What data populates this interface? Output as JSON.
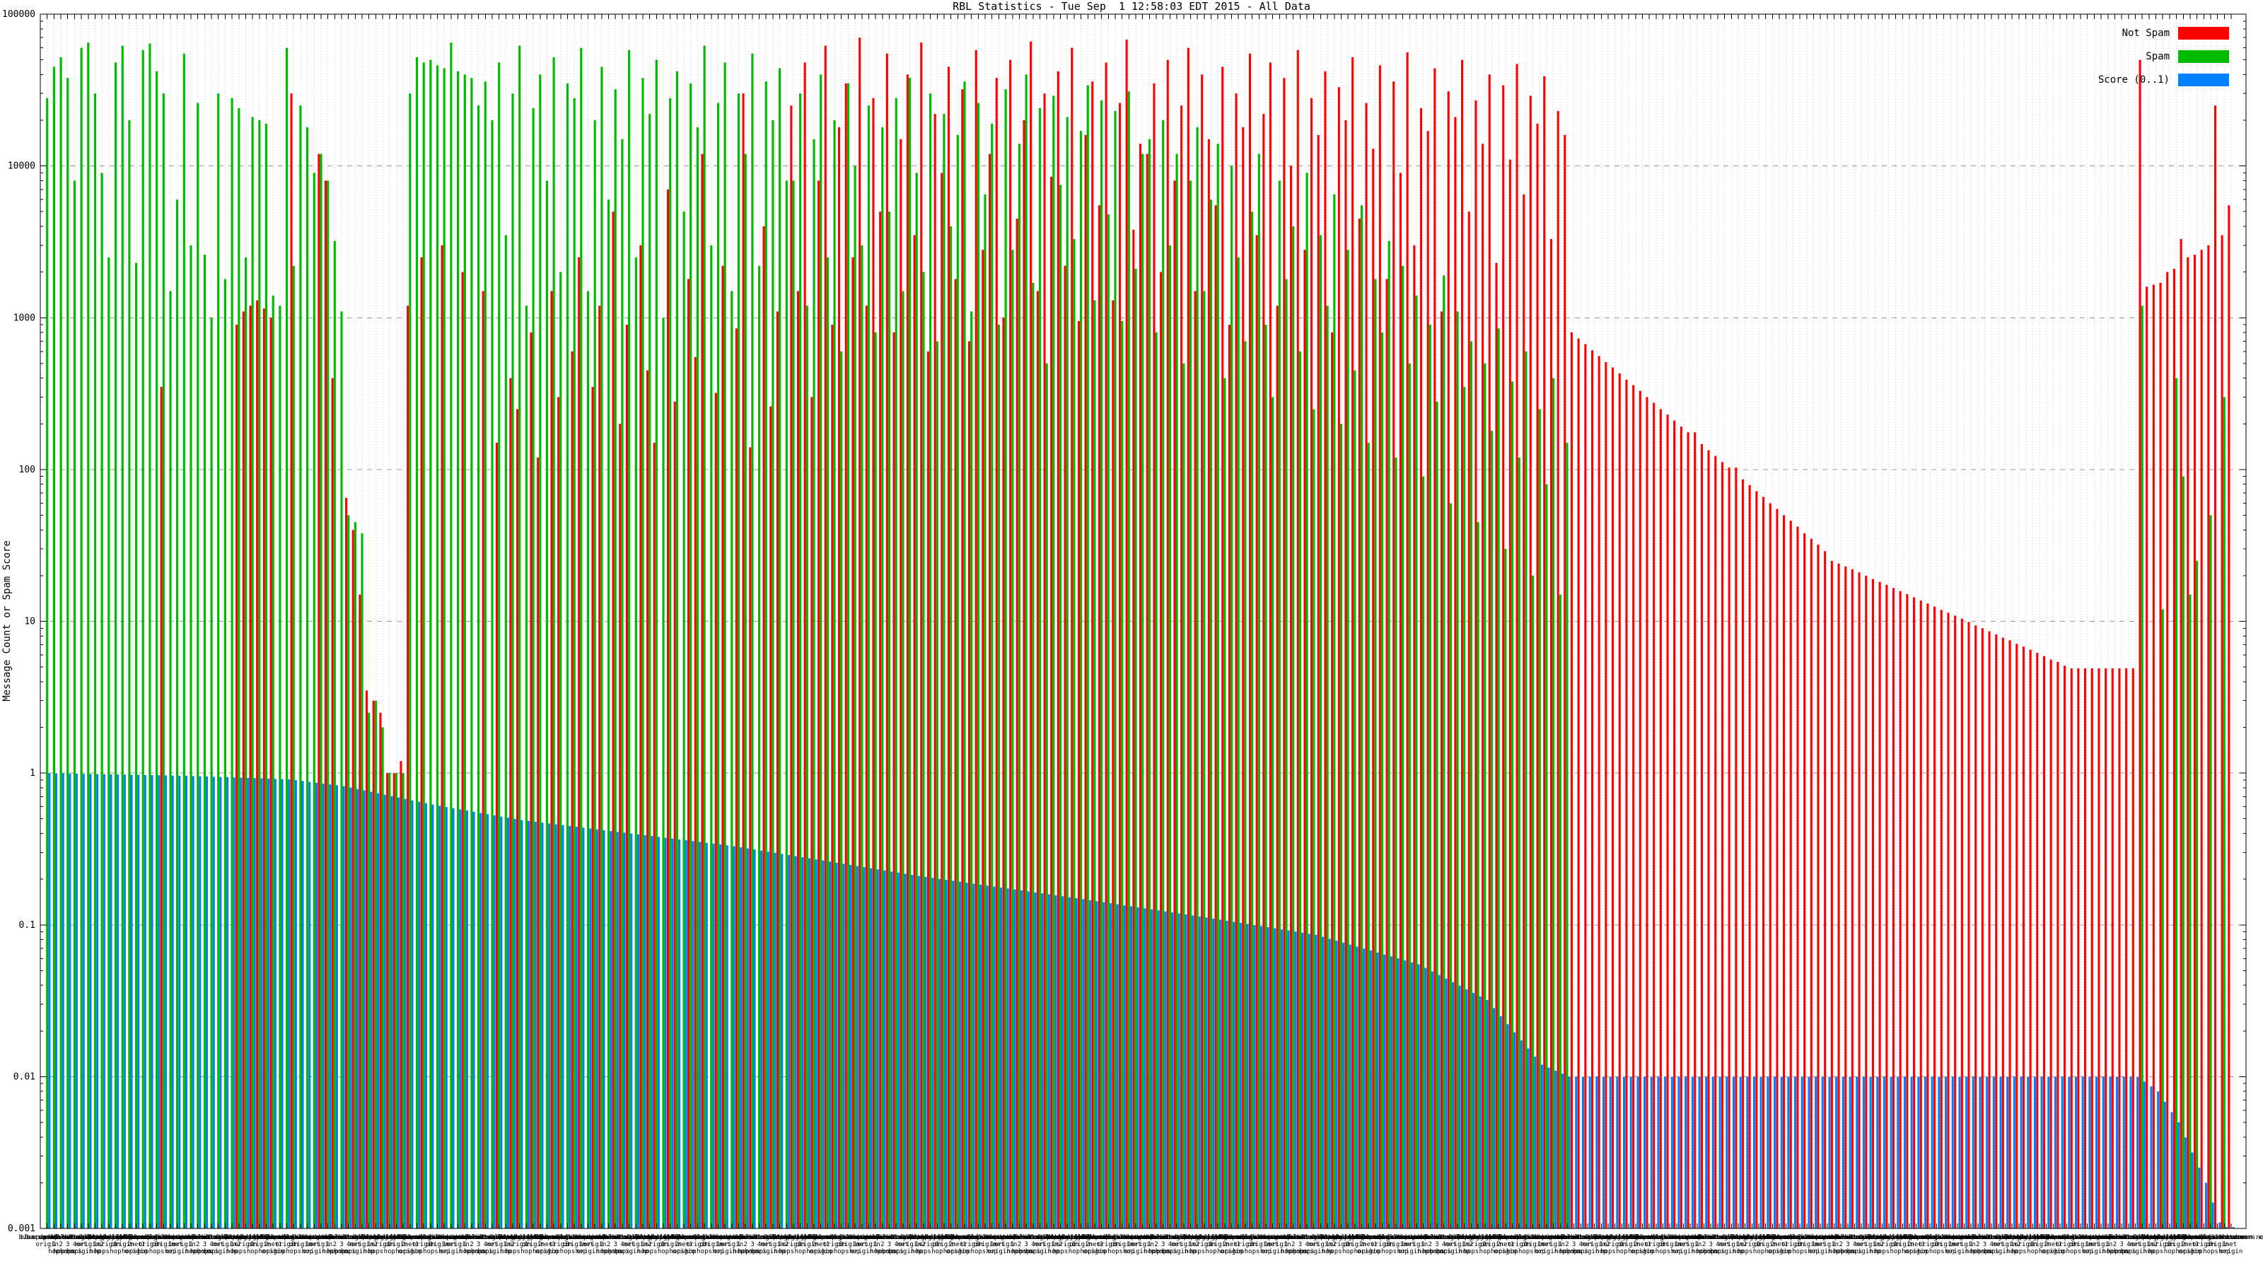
{
  "title": "RBL Statistics - Tue Sep  1 12:58:03 EDT 2015 - All Data",
  "y_axis": {
    "label": "Message Count or Spam Score",
    "scale": "log",
    "ticks": [
      {
        "label": "100000",
        "value": 100000
      },
      {
        "label": "10000",
        "value": 10000
      },
      {
        "label": "1000",
        "value": 1000
      },
      {
        "label": "100",
        "value": 100
      },
      {
        "label": "10",
        "value": 10
      },
      {
        "label": "1",
        "value": 1
      },
      {
        "label": "0.1",
        "value": 0.1
      },
      {
        "label": "0.01",
        "value": 0.01
      },
      {
        "label": "0.001",
        "value": 0.001
      }
    ]
  },
  "legend": {
    "entries": [
      {
        "label": "Not Spam",
        "color": "#ff0000"
      },
      {
        "label": "Spam",
        "color": "#00bb00"
      },
      {
        "label": "Score (0..1)",
        "color": "#0080ff"
      }
    ]
  },
  "x_axis": {
    "readable_fragments": [
      "net origin",
      "1 hop",
      "2 hops",
      "3 hops",
      "4 hops",
      "origin",
      "net",
      "1 h"
    ],
    "smear_label_palette": [
      "bl.spamcop.net origin",
      "zen.spamhaus.org 1 hop",
      "b.barracudacentral.org 2 hops",
      "dnsbl.sorbs.net 3 hops",
      "psbl.surriel.com 4 hops",
      "cbl.abuseat.org net origin",
      "dnsbl-1.uceprotect.net origin",
      "bl.mailspike.net 1 hop",
      "ix.dnsbl.manitu.net 2 hops",
      "db.wpbl.info origin",
      "truncate.gbudb.net 1 hop",
      "dnsbl.justspam.org origin",
      "all.s5h.net 2 hops",
      "hostkarma.junkemailfilter.com net origin",
      "spam.dnsbl.anonmails.de 1 hop",
      "ubl.unsubscore.com origin",
      "dyna.spamrats.com 3 hops",
      "noptr.spamrats.com origin",
      "bl.score.senderscore.com 1 hop",
      "rbl.interserver.net net origin"
    ]
  },
  "chart_data": {
    "type": "bar",
    "title": "RBL Statistics - Tue Sep  1 12:58:03 EDT 2015 - All Data",
    "xlabel": "",
    "ylabel": "Message Count or Spam Score",
    "ylim": [
      0.001,
      100000
    ],
    "yscale": "log",
    "grid": true,
    "legend_position": "top-right",
    "n_clusters": 320,
    "series_names": [
      "Not Spam",
      "Spam",
      "Score (0..1)"
    ],
    "colors": {
      "not_spam": "#ff0000",
      "spam": "#00bb00",
      "score": "#0080ff"
    },
    "red": [
      0,
      0,
      0,
      0,
      0,
      0,
      0,
      0,
      0,
      0,
      0,
      0,
      0,
      0,
      0,
      0,
      0,
      350,
      0,
      0,
      0,
      0,
      0,
      0,
      0,
      0,
      0,
      0,
      900,
      1100,
      1200,
      1300,
      1150,
      1000,
      0,
      0,
      30000,
      0,
      0,
      0,
      12000,
      8000,
      400,
      0,
      65,
      40,
      15,
      3.5,
      3,
      2.5,
      1,
      1,
      1.2,
      1200,
      0,
      2500,
      0,
      0,
      3000,
      0,
      0,
      2000,
      0,
      0,
      1500,
      0,
      150,
      0,
      400,
      250,
      0,
      800,
      120,
      0,
      1500,
      300,
      0,
      600,
      2500,
      0,
      350,
      1200,
      0,
      5000,
      200,
      900,
      0,
      3000,
      450,
      150,
      0,
      7000,
      280,
      0,
      1800,
      550,
      12000,
      0,
      320,
      2200,
      0,
      850,
      30000,
      140,
      0,
      4000,
      260,
      1100,
      0,
      25000,
      1500,
      48000,
      300,
      8000,
      62000,
      900,
      18000,
      35000,
      2500,
      70000,
      1200,
      28000,
      5000,
      55000,
      800,
      15000,
      40000,
      3500,
      65000,
      600,
      22000,
      9000,
      45000,
      1800,
      32000,
      700,
      58000,
      2800,
      12000,
      38000,
      1000,
      50000,
      4500,
      20000,
      66000,
      1500,
      30000,
      8500,
      42000,
      2200,
      60000,
      950,
      16000,
      36000,
      5500,
      48000,
      1300,
      26000,
      68000,
      3800,
      14000,
      12000,
      35000,
      2000,
      50000,
      8000,
      25000,
      60000,
      1500,
      40000,
      15000,
      5500,
      45000,
      900,
      30000,
      18000,
      55000,
      3500,
      22000,
      48000,
      1200,
      38000,
      10000,
      58000,
      2800,
      28000,
      16000,
      42000,
      800,
      33000,
      20000,
      52000,
      4500,
      26000,
      13000,
      46000,
      1800,
      36000,
      9000,
      56000,
      3000,
      24000,
      17000,
      44000,
      1100,
      31000,
      21000,
      50000,
      5000,
      27000,
      14000,
      40000,
      2300,
      34000,
      11000,
      47000,
      6500,
      29000,
      19000,
      39000,
      3300,
      23000,
      16000,
      800,
      730,
      670,
      610,
      560,
      510,
      470,
      430,
      390,
      360,
      330,
      300,
      275,
      250,
      230,
      210,
      192,
      176,
      176,
      147,
      134,
      123,
      112,
      103,
      103,
      86,
      79,
      72,
      66,
      60,
      55,
      50,
      46,
      42,
      38,
      35,
      32,
      29,
      25,
      24,
      23,
      22,
      21,
      20,
      19,
      18.2,
      17.4,
      16.6,
      15.8,
      15.1,
      14.4,
      13.7,
      13.1,
      12.5,
      11.9,
      11.4,
      10.9,
      10.4,
      9.9,
      9.4,
      9,
      8.6,
      8.2,
      7.8,
      7.5,
      7.1,
      6.8,
      6.5,
      6.2,
      5.9,
      5.6,
      5.4,
      5.1,
      4.9,
      4.9,
      4.9,
      4.9,
      4.9,
      4.9,
      4.9,
      4.9,
      4.9,
      4.9,
      50000,
      1600,
      1650,
      1700,
      2000,
      2100,
      3300,
      2500,
      2600,
      2800,
      3000,
      25000,
      3500,
      5500
    ],
    "green": [
      28000,
      45000,
      52000,
      38000,
      8000,
      60000,
      65000,
      30000,
      9000,
      2500,
      48000,
      62000,
      20000,
      2300,
      58000,
      64000,
      42000,
      30000,
      1500,
      6000,
      55000,
      3000,
      26000,
      2600,
      1000,
      30000,
      1800,
      28000,
      24000,
      2500,
      21000,
      20000,
      19000,
      1400,
      1200,
      60000,
      2200,
      25000,
      18000,
      9000,
      12000,
      8000,
      3200,
      1100,
      50,
      45,
      38,
      2.5,
      3,
      2,
      1,
      1,
      1,
      30000,
      52000,
      48000,
      50000,
      46000,
      44000,
      65000,
      42000,
      40000,
      38000,
      25000,
      36000,
      20000,
      48000,
      3500,
      30000,
      62000,
      1200,
      24000,
      40000,
      8000,
      52000,
      2000,
      35000,
      28000,
      60000,
      1500,
      20000,
      45000,
      6000,
      32000,
      15000,
      58000,
      2500,
      38000,
      22000,
      50000,
      1000,
      28000,
      42000,
      5000,
      35000,
      18000,
      62000,
      3000,
      26000,
      48000,
      1500,
      30000,
      12000,
      55000,
      2200,
      36000,
      20000,
      44000,
      8000,
      8000,
      30000,
      1200,
      15000,
      40000,
      2500,
      20000,
      600,
      35000,
      10000,
      3000,
      25000,
      800,
      18000,
      5000,
      28000,
      1500,
      38000,
      9000,
      2000,
      30000,
      700,
      22000,
      4000,
      16000,
      36000,
      1100,
      26000,
      6500,
      19000,
      900,
      32000,
      2800,
      14000,
      40000,
      1700,
      24000,
      500,
      29000,
      7500,
      21000,
      3300,
      17000,
      34000,
      1300,
      27000,
      4800,
      23000,
      950,
      31000,
      2100,
      12000,
      15000,
      800,
      20000,
      3000,
      12000,
      500,
      8000,
      18000,
      1500,
      6000,
      14000,
      400,
      10000,
      2500,
      700,
      5000,
      12000,
      900,
      300,
      8000,
      1800,
      4000,
      600,
      9000,
      250,
      3500,
      1200,
      6500,
      200,
      2800,
      450,
      5500,
      150,
      1800,
      800,
      3200,
      120,
      2200,
      500,
      1400,
      90,
      900,
      280,
      1900,
      60,
      1100,
      350,
      700,
      45,
      500,
      180,
      850,
      30,
      380,
      120,
      600,
      20,
      250,
      80,
      400,
      15,
      150,
      0,
      0,
      0,
      0,
      0,
      0,
      0,
      0,
      0,
      0,
      0,
      0,
      0,
      0,
      0,
      0,
      0,
      0,
      0,
      0,
      0,
      0,
      0,
      0,
      0,
      0,
      0,
      0,
      0,
      0,
      0,
      0,
      0,
      0,
      0,
      0,
      0,
      0,
      0,
      0,
      0,
      0,
      0,
      0,
      0,
      0,
      0,
      0,
      0,
      0,
      0,
      0,
      0,
      0,
      0,
      0,
      0,
      0,
      0,
      0,
      0,
      0,
      0,
      0,
      0,
      0,
      0,
      0,
      0,
      0,
      0,
      0,
      0,
      0,
      0,
      0,
      0,
      0,
      0,
      0,
      0,
      0,
      0,
      1200,
      0,
      0,
      12,
      0,
      400,
      90,
      15,
      25,
      0,
      50,
      0,
      300,
      0
    ],
    "score_anchors": [
      [
        0,
        1.0
      ],
      [
        4,
        0.99
      ],
      [
        20,
        0.96
      ],
      [
        35,
        0.91
      ],
      [
        43,
        0.82
      ],
      [
        56,
        0.62
      ],
      [
        69,
        0.49
      ],
      [
        100,
        0.33
      ],
      [
        127,
        0.21
      ],
      [
        150,
        0.15
      ],
      [
        170,
        0.11
      ],
      [
        185,
        0.086
      ],
      [
        200,
        0.055
      ],
      [
        210,
        0.032
      ],
      [
        218,
        0.012
      ],
      [
        222,
        0.01
      ],
      [
        305,
        0.01
      ],
      [
        308,
        0.008
      ],
      [
        311,
        0.005
      ],
      [
        315,
        0.002
      ],
      [
        319,
        0.0006
      ]
    ]
  }
}
